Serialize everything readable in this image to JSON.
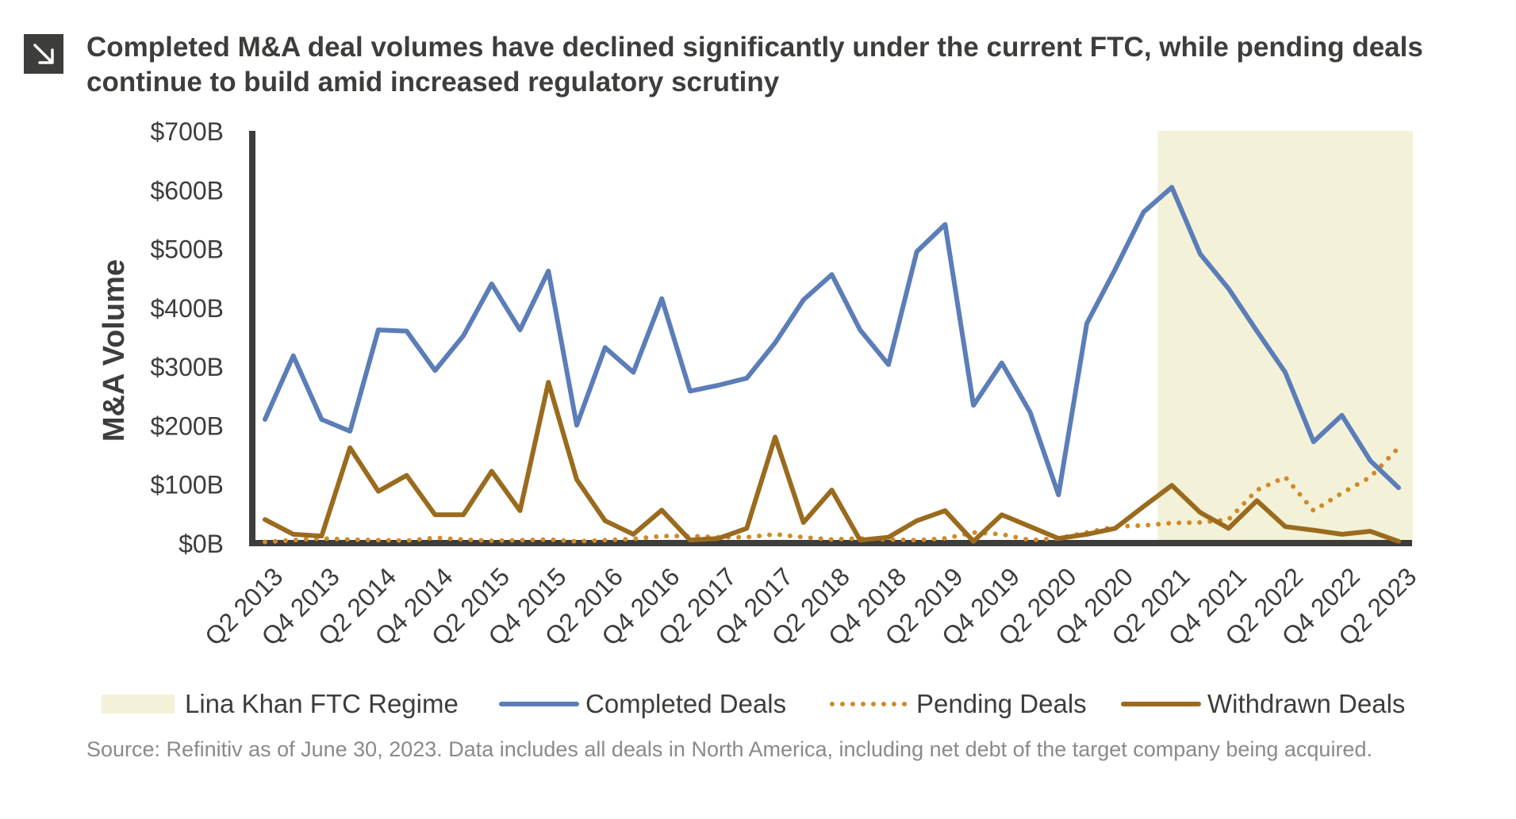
{
  "header": {
    "icon": "arrow-down-right-icon",
    "title": "Completed M&A deal volumes have declined significantly under the current FTC, while pending deals continue to build amid increased regulatory scrutiny"
  },
  "source_note": "Source: Refinitiv as of June 30, 2023. Data includes all deals in North America, including net debt of the target company being acquired.",
  "chart_data": {
    "type": "line",
    "title": "Completed M&A deal volumes have declined significantly under the current FTC, while pending deals continue to build amid increased regulatory scrutiny",
    "xlabel": "",
    "ylabel": "M&A Volume",
    "ylim": [
      0,
      700
    ],
    "yticks": [
      "$0B",
      "$100B",
      "$200B",
      "$300B",
      "$400B",
      "$500B",
      "$600B",
      "$700B"
    ],
    "x": [
      "Q2 2013",
      "Q3 2013",
      "Q4 2013",
      "Q1 2014",
      "Q2 2014",
      "Q3 2014",
      "Q4 2014",
      "Q1 2015",
      "Q2 2015",
      "Q3 2015",
      "Q4 2015",
      "Q1 2016",
      "Q2 2016",
      "Q3 2016",
      "Q4 2016",
      "Q1 2017",
      "Q2 2017",
      "Q3 2017",
      "Q4 2017",
      "Q1 2018",
      "Q2 2018",
      "Q3 2018",
      "Q4 2018",
      "Q1 2019",
      "Q2 2019",
      "Q3 2019",
      "Q4 2019",
      "Q1 2020",
      "Q2 2020",
      "Q3 2020",
      "Q4 2020",
      "Q1 2021",
      "Q2 2021",
      "Q3 2021",
      "Q4 2021",
      "Q1 2022",
      "Q2 2022",
      "Q3 2022",
      "Q4 2022",
      "Q1 2023",
      "Q2 2023"
    ],
    "xtick_labels": [
      "Q2 2013",
      "Q4 2013",
      "Q2 2014",
      "Q4 2014",
      "Q2 2015",
      "Q4 2015",
      "Q2 2016",
      "Q4 2016",
      "Q2 2017",
      "Q4 2017",
      "Q2 2018",
      "Q4 2018",
      "Q2 2019",
      "Q4 2019",
      "Q2 2020",
      "Q4 2020",
      "Q2 2021",
      "Q4 2021",
      "Q2 2022",
      "Q4 2022",
      "Q2 2023"
    ],
    "shaded_region": {
      "name": "Lina Khan FTC Regime",
      "x_start": "Q2 2021",
      "x_end": "Q2 2023",
      "color": "#f3f2d8"
    },
    "series": [
      {
        "name": "Completed Deals",
        "color": "#5b7db8",
        "style": "solid",
        "values": [
          210,
          318,
          210,
          190,
          362,
          360,
          293,
          352,
          440,
          362,
          462,
          200,
          332,
          290,
          415,
          258,
          268,
          280,
          340,
          413,
          456,
          362,
          303,
          495,
          541,
          234,
          306,
          222,
          82,
          373,
          465,
          562,
          604,
          491,
          432,
          360,
          290,
          172,
          217,
          140,
          94
        ]
      },
      {
        "name": "Pending Deals",
        "color": "#d08a2a",
        "style": "dotted",
        "values": [
          2,
          5,
          8,
          6,
          5,
          4,
          9,
          6,
          4,
          5,
          6,
          3,
          5,
          7,
          12,
          12,
          10,
          10,
          15,
          10,
          6,
          8,
          6,
          5,
          8,
          18,
          15,
          5,
          8,
          18,
          28,
          30,
          34,
          35,
          40,
          90,
          112,
          55,
          85,
          112,
          162
        ]
      },
      {
        "name": "Withdrawn Deals",
        "color": "#9a6b1e",
        "style": "solid",
        "values": [
          40,
          15,
          12,
          162,
          88,
          115,
          48,
          48,
          122,
          55,
          273,
          108,
          38,
          15,
          56,
          5,
          8,
          25,
          180,
          35,
          90,
          5,
          10,
          38,
          55,
          3,
          48,
          28,
          8,
          15,
          25,
          62,
          98,
          52,
          25,
          72,
          28,
          22,
          15,
          20,
          3
        ]
      }
    ],
    "legend": {
      "position": "bottom",
      "entries": [
        "Lina Khan FTC Regime",
        "Completed Deals",
        "Pending Deals",
        "Withdrawn Deals"
      ]
    }
  }
}
